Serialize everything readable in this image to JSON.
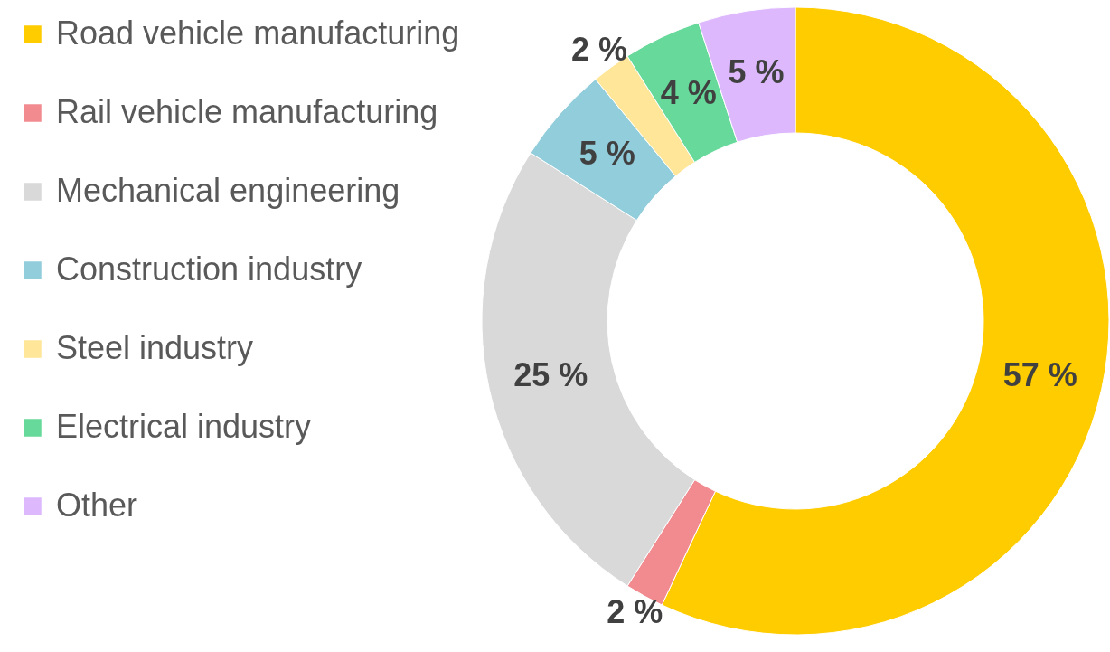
{
  "chart_data": {
    "type": "donut",
    "categories": [
      "Road vehicle manufacturing",
      "Rail vehicle manufacturing",
      "Mechanical engineering",
      "Construction industry",
      "Steel industry",
      "Electrical industry",
      "Other"
    ],
    "values": [
      57,
      2,
      25,
      5,
      2,
      4,
      5
    ],
    "colors": [
      "#ffcc00",
      "#f28b8f",
      "#d9d9d9",
      "#92cddc",
      "#ffe699",
      "#66d99b",
      "#ddb8fd"
    ],
    "value_labels": [
      "57 %",
      "2 %",
      "25 %",
      "5 %",
      "2 %",
      "4 %",
      "5 %"
    ],
    "legend": "left"
  }
}
